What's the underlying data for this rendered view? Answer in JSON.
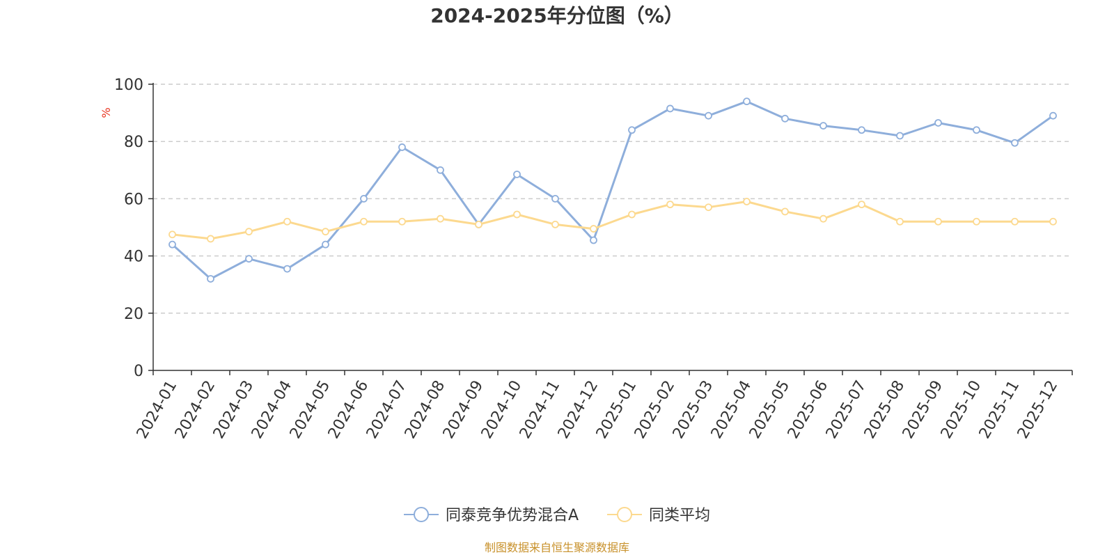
{
  "chart_data": {
    "type": "line",
    "title": "2024-2025年分位图（%）",
    "ylabel": "%",
    "xlabel": "",
    "ylim": [
      0,
      100
    ],
    "yticks": [
      0,
      20,
      40,
      60,
      80,
      100
    ],
    "grid": true,
    "legend_position": "bottom-center",
    "categories": [
      "2024-01",
      "2024-02",
      "2024-03",
      "2024-04",
      "2024-05",
      "2024-06",
      "2024-07",
      "2024-08",
      "2024-09",
      "2024-10",
      "2024-11",
      "2024-12",
      "2025-01",
      "2025-02",
      "2025-03",
      "2025-04",
      "2025-05",
      "2025-06",
      "2025-07",
      "2025-08",
      "2025-09",
      "2025-10",
      "2025-11",
      "2025-12"
    ],
    "series": [
      {
        "name": "同泰竞争优势混合A",
        "color": "#8eaedb",
        "values": [
          44,
          32,
          39,
          35.5,
          44,
          60,
          78,
          70,
          51,
          68.5,
          60,
          45.5,
          84,
          91.5,
          89,
          94,
          88,
          85.5,
          84,
          82,
          86.5,
          84,
          79.5,
          89
        ]
      },
      {
        "name": "同类平均",
        "color": "#fcd98f",
        "values": [
          47.5,
          46,
          48.5,
          52,
          48.5,
          52,
          52,
          53,
          51,
          54.5,
          51,
          49.5,
          54.5,
          58,
          57,
          59,
          55.5,
          53,
          58,
          52,
          52,
          52,
          52,
          52
        ]
      }
    ],
    "source": "制图数据来自恒生聚源数据库",
    "colors": {
      "axis": "#333333",
      "grid": "#cccccc",
      "ylabel": "#e8331f",
      "source": "#c8912b"
    }
  }
}
